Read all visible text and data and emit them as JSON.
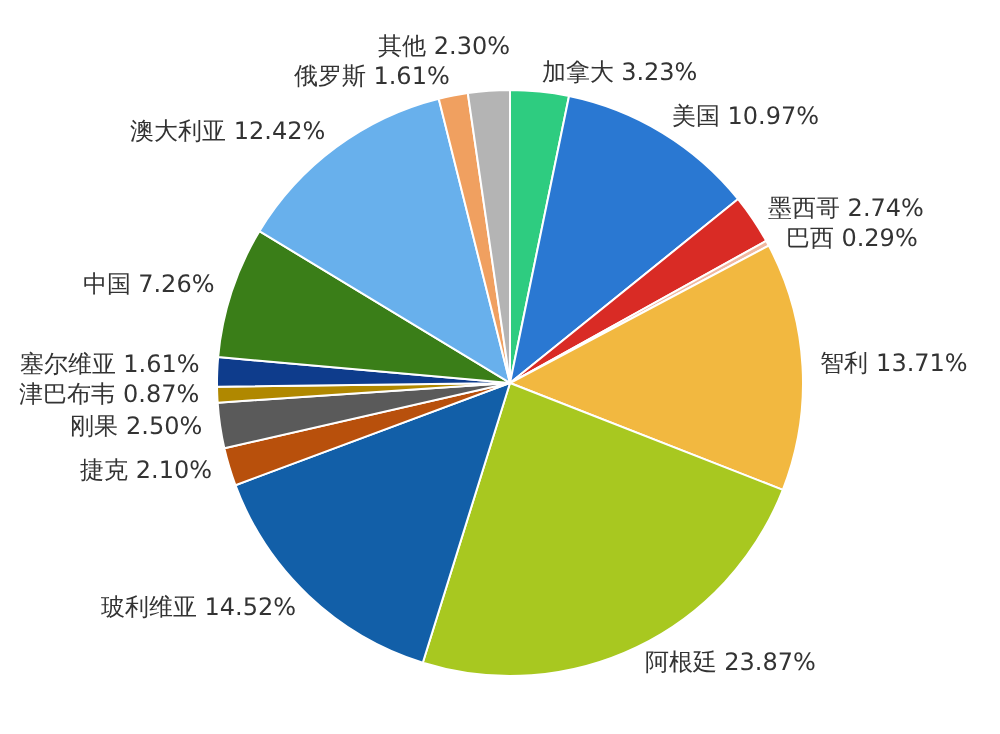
{
  "chart_data": {
    "type": "pie",
    "categories": [
      "加拿大",
      "美国",
      "墨西哥",
      "巴西",
      "智利",
      "阿根廷",
      "玻利维亚",
      "捷克",
      "刚果",
      "津巴布韦",
      "塞尔维亚",
      "中国",
      "澳大利亚",
      "俄罗斯",
      "其他"
    ],
    "values": [
      3.23,
      10.97,
      2.74,
      0.29,
      13.71,
      23.87,
      14.52,
      2.1,
      2.5,
      0.87,
      1.61,
      7.26,
      12.42,
      1.61,
      2.3
    ],
    "value_labels": [
      "3.23%",
      "10.97%",
      "2.74%",
      "0.29%",
      "13.71%",
      "23.87%",
      "14.52%",
      "2.10%",
      "2.50%",
      "0.87%",
      "1.61%",
      "7.26%",
      "12.42%",
      "1.61%",
      "2.30%"
    ],
    "colors": [
      "#2ecc80",
      "#2a78d2",
      "#d92b25",
      "#f0b8a0",
      "#f2b840",
      "#a8c820",
      "#125fa8",
      "#b8500c",
      "#5a5a5a",
      "#b08800",
      "#0e3c8c",
      "#3a7e18",
      "#68b0ec",
      "#f0a060",
      "#b4b4b4"
    ]
  }
}
